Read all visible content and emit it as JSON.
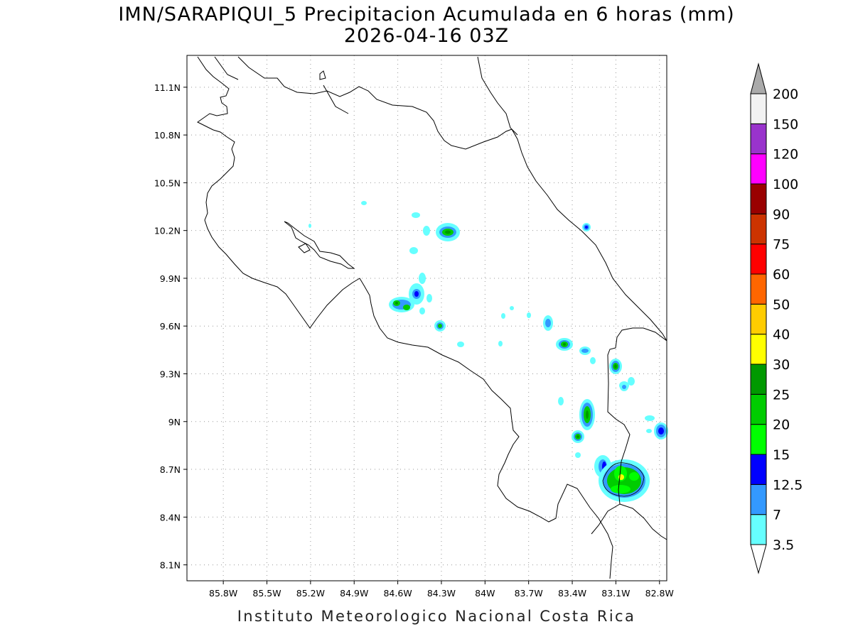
{
  "title": {
    "line1": "IMN/SARAPIQUI_5 Precipitacion Acumulada en 6 horas (mm)",
    "line2": "2026-04-16 03Z"
  },
  "footer": "Instituto Meteorologico Nacional Costa Rica",
  "map": {
    "lon_range": [
      -86.05,
      -82.75
    ],
    "lat_range": [
      8.0,
      11.3
    ],
    "x_ticks": [
      {
        "value": -85.8,
        "label": "85.8W"
      },
      {
        "value": -85.5,
        "label": "85.5W"
      },
      {
        "value": -85.2,
        "label": "85.2W"
      },
      {
        "value": -84.9,
        "label": "84.9W"
      },
      {
        "value": -84.6,
        "label": "84.6W"
      },
      {
        "value": -84.3,
        "label": "84.3W"
      },
      {
        "value": -84.0,
        "label": "84W"
      },
      {
        "value": -83.7,
        "label": "83.7W"
      },
      {
        "value": -83.4,
        "label": "83.4W"
      },
      {
        "value": -83.1,
        "label": "83.1W"
      },
      {
        "value": -82.8,
        "label": "82.8W"
      }
    ],
    "y_ticks": [
      {
        "value": 11.1,
        "label": "11.1N"
      },
      {
        "value": 10.8,
        "label": "10.8N"
      },
      {
        "value": 10.5,
        "label": "10.5N"
      },
      {
        "value": 10.2,
        "label": "10.2N"
      },
      {
        "value": 9.9,
        "label": "9.9N"
      },
      {
        "value": 9.6,
        "label": "9.6N"
      },
      {
        "value": 9.3,
        "label": "9.3N"
      },
      {
        "value": 9.0,
        "label": "9N"
      },
      {
        "value": 8.7,
        "label": "8.7N"
      },
      {
        "value": 8.4,
        "label": "8.4N"
      },
      {
        "value": 8.1,
        "label": "8.1N"
      }
    ],
    "grid": "dotted"
  },
  "colorbar": {
    "levels": [
      {
        "label": "3.5",
        "color": "#66ffff"
      },
      {
        "label": "7",
        "color": "#3399ff"
      },
      {
        "label": "12.5",
        "color": "#0000ff"
      },
      {
        "label": "15",
        "color": "#00ff00"
      },
      {
        "label": "20",
        "color": "#00cc00"
      },
      {
        "label": "25",
        "color": "#009900"
      },
      {
        "label": "30",
        "color": "#ffff00"
      },
      {
        "label": "40",
        "color": "#ffcc00"
      },
      {
        "label": "50",
        "color": "#ff6600"
      },
      {
        "label": "60",
        "color": "#ff0000"
      },
      {
        "label": "75",
        "color": "#cc3300"
      },
      {
        "label": "90",
        "color": "#990000"
      },
      {
        "label": "100",
        "color": "#ff00ff"
      },
      {
        "label": "120",
        "color": "#9933cc"
      },
      {
        "label": "150",
        "color": "#f2f2f2"
      },
      {
        "label": "200",
        "color": "#aaaaaa"
      }
    ]
  }
}
